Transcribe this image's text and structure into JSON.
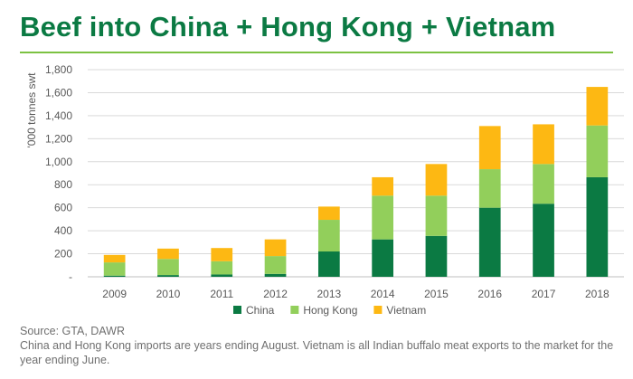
{
  "title": "Beef into China + Hong Kong + Vietnam",
  "source": "Source: GTA, DAWR",
  "note": "China and Hong Kong imports are years ending August. Vietnam is all Indian buffalo meat exports to the market for the year ending June.",
  "chart_data": {
    "type": "bar",
    "stacked": true,
    "categories": [
      "2009",
      "2010",
      "2011",
      "2012",
      "2013",
      "2014",
      "2015",
      "2016",
      "2017",
      "2018"
    ],
    "series": [
      {
        "name": "China",
        "color": "#0b7a43",
        "values": [
          10,
          15,
          20,
          25,
          220,
          325,
          355,
          600,
          635,
          865
        ]
      },
      {
        "name": "Hong Kong",
        "color": "#92cf5b",
        "values": [
          115,
          140,
          115,
          155,
          275,
          380,
          350,
          335,
          345,
          450
        ]
      },
      {
        "name": "Vietnam",
        "color": "#fdb813",
        "values": [
          65,
          90,
          115,
          145,
          115,
          160,
          275,
          375,
          345,
          335
        ]
      }
    ],
    "ylabel": "'000 tonnes swt",
    "ylim": [
      0,
      1800
    ],
    "yticks": [
      0,
      200,
      400,
      600,
      800,
      1000,
      1200,
      1400,
      1600,
      1800
    ],
    "ytick_labels": [
      "-",
      "200",
      "400",
      "600",
      "800",
      "1,000",
      "1,200",
      "1,400",
      "1,600",
      "1,800"
    ],
    "grid": true,
    "legend_position": "bottom"
  }
}
